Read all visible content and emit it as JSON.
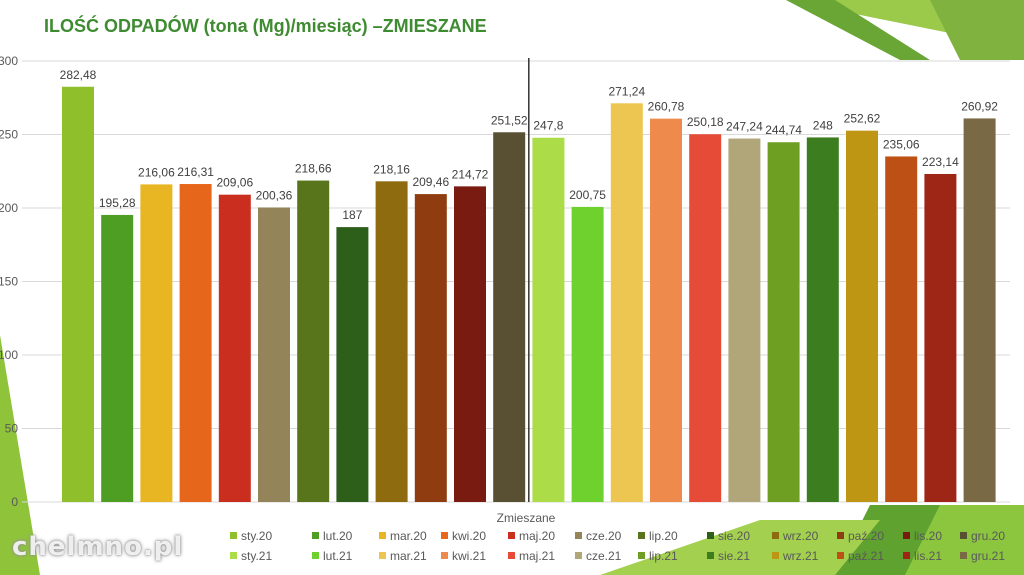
{
  "title": "ILOŚĆ ODPADÓW (tona (Mg)/miesiąc) –ZMIESZANE",
  "watermark": "chelmno.pl",
  "chart_data": {
    "type": "bar",
    "xlabel": "Zmieszane",
    "ylabel": "",
    "ylim": [
      0,
      300
    ],
    "yticks": [
      0,
      50,
      100,
      150,
      200,
      250,
      300
    ],
    "grid": true,
    "legend_position": "bottom",
    "series": [
      {
        "name": "sty.20",
        "value": 282.48,
        "label": "282,48",
        "color": "#8fbf2a"
      },
      {
        "name": "lut.20",
        "value": 195.28,
        "label": "195,28",
        "color": "#4e9e23"
      },
      {
        "name": "mar.20",
        "value": 216.06,
        "label": "216,06",
        "color": "#e8b523"
      },
      {
        "name": "kwi.20",
        "value": 216.31,
        "label": "216,31",
        "color": "#e6671b"
      },
      {
        "name": "maj.20",
        "value": 209.06,
        "label": "209,06",
        "color": "#c92e1e"
      },
      {
        "name": "cze.20",
        "value": 200.36,
        "label": "200,36",
        "color": "#93845a"
      },
      {
        "name": "lip.20",
        "value": 218.66,
        "label": "218,66",
        "color": "#58751c"
      },
      {
        "name": "sie.20",
        "value": 187,
        "label": "187",
        "color": "#2d5e1a"
      },
      {
        "name": "wrz.20",
        "value": 218.16,
        "label": "218,16",
        "color": "#8f6b10"
      },
      {
        "name": "paź.20",
        "value": 209.46,
        "label": "209,46",
        "color": "#8f3c10"
      },
      {
        "name": "lis.20",
        "value": 214.72,
        "label": "214,72",
        "color": "#7a1b12"
      },
      {
        "name": "gru.20",
        "value": 251.52,
        "label": "251,52",
        "color": "#595034"
      },
      {
        "name": "sty.21",
        "value": 247.8,
        "label": "247,8",
        "color": "#acdc48"
      },
      {
        "name": "lut.21",
        "value": 200.75,
        "label": "200,75",
        "color": "#6ed12e"
      },
      {
        "name": "mar.21",
        "value": 271.24,
        "label": "271,24",
        "color": "#ecc650"
      },
      {
        "name": "kwi.21",
        "value": 260.78,
        "label": "260,78",
        "color": "#ee8a4b"
      },
      {
        "name": "maj.21",
        "value": 250.18,
        "label": "250,18",
        "color": "#e64b37"
      },
      {
        "name": "cze.21",
        "value": 247.24,
        "label": "247,24",
        "color": "#b0a679"
      },
      {
        "name": "lip.21",
        "value": 244.74,
        "label": "244,74",
        "color": "#6f9f22"
      },
      {
        "name": "sie.21",
        "value": 248,
        "label": "248",
        "color": "#3c7d20"
      },
      {
        "name": "wrz.21",
        "value": 252.62,
        "label": "252,62",
        "color": "#be9614"
      },
      {
        "name": "paź.21",
        "value": 235.06,
        "label": "235,06",
        "color": "#bd5015"
      },
      {
        "name": "lis.21",
        "value": 223.14,
        "label": "223,14",
        "color": "#9e2617"
      },
      {
        "name": "gru.21",
        "value": 260.92,
        "label": "260,92",
        "color": "#796a45"
      }
    ]
  }
}
